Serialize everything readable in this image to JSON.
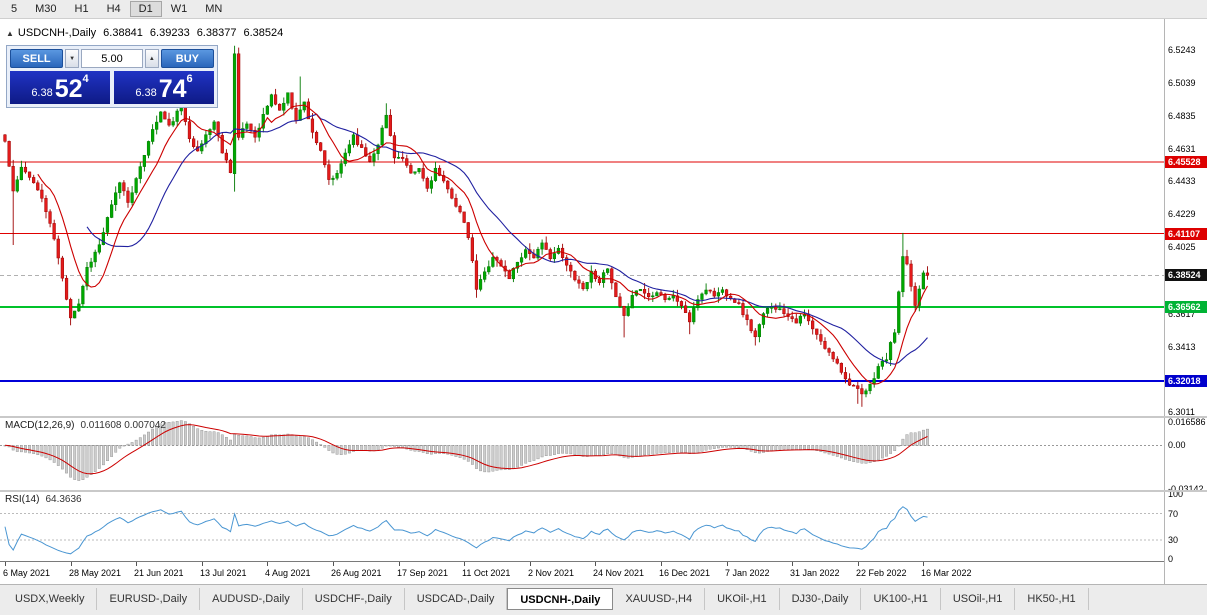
{
  "icons": {
    "collapse": "▲",
    "spin_down": "▼",
    "spin_up": "▲"
  },
  "toolbar": {
    "timeframes": [
      {
        "label": "5",
        "active": false
      },
      {
        "label": "M30",
        "active": false
      },
      {
        "label": "H1",
        "active": false
      },
      {
        "label": "H4",
        "active": false
      },
      {
        "label": "D1",
        "active": true
      },
      {
        "label": "W1",
        "active": false
      },
      {
        "label": "MN",
        "active": false
      }
    ]
  },
  "chart": {
    "symbol_label": "USDCNH-,Daily",
    "ohlc": {
      "open": "6.38841",
      "high": "6.39233",
      "low": "6.38377",
      "close": "6.38524"
    }
  },
  "trade": {
    "sell_label": "SELL",
    "buy_label": "BUY",
    "volume": "5.00",
    "sell_price": {
      "prefix": "6.38",
      "big": "52",
      "sup": "4"
    },
    "buy_price": {
      "prefix": "6.38",
      "big": "74",
      "sup": "6"
    }
  },
  "macd_panel": {
    "label": "MACD(12,26,9)",
    "values": "0.011608 0.007042"
  },
  "rsi_panel": {
    "label": "RSI(14)",
    "value": "64.3636"
  },
  "tabs": [
    {
      "label": "USDX,Weekly",
      "active": false
    },
    {
      "label": "EURUSD-,Daily",
      "active": false
    },
    {
      "label": "AUDUSD-,Daily",
      "active": false
    },
    {
      "label": "USDCHF-,Daily",
      "active": false
    },
    {
      "label": "USDCAD-,Daily",
      "active": false
    },
    {
      "label": "USDCNH-,Daily",
      "active": true
    },
    {
      "label": "XAUUSD-,H4",
      "active": false
    },
    {
      "label": "UKOil-,H1",
      "active": false
    },
    {
      "label": "DJ30-,Daily",
      "active": false
    },
    {
      "label": "UK100-,H1",
      "active": false
    },
    {
      "label": "USOil-,H1",
      "active": false
    },
    {
      "label": "HK50-,H1",
      "active": false
    }
  ],
  "chart_data": {
    "type": "candlestick",
    "symbol": "USDCNH-",
    "period": "Daily",
    "price_max": 6.5435,
    "price_min": 6.2985,
    "candle_count": 226,
    "bid_price": 6.38524,
    "close_anchors": [
      [
        0,
        6.468
      ],
      [
        2,
        6.437
      ],
      [
        4,
        6.451
      ],
      [
        6,
        6.447
      ],
      [
        9,
        6.433
      ],
      [
        12,
        6.408
      ],
      [
        14,
        6.383
      ],
      [
        16,
        6.36
      ],
      [
        18,
        6.368
      ],
      [
        20,
        6.39
      ],
      [
        23,
        6.404
      ],
      [
        26,
        6.428
      ],
      [
        28,
        6.443
      ],
      [
        30,
        6.431
      ],
      [
        33,
        6.451
      ],
      [
        35,
        6.469
      ],
      [
        38,
        6.486
      ],
      [
        40,
        6.477
      ],
      [
        43,
        6.49
      ],
      [
        45,
        6.471
      ],
      [
        47,
        6.461
      ],
      [
        49,
        6.472
      ],
      [
        51,
        6.48
      ],
      [
        53,
        6.462
      ],
      [
        55,
        6.45
      ],
      [
        56,
        6.522
      ],
      [
        57,
        6.47
      ],
      [
        59,
        6.479
      ],
      [
        61,
        6.471
      ],
      [
        63,
        6.484
      ],
      [
        65,
        6.496
      ],
      [
        67,
        6.487
      ],
      [
        69,
        6.497
      ],
      [
        71,
        6.482
      ],
      [
        73,
        6.492
      ],
      [
        75,
        6.474
      ],
      [
        77,
        6.461
      ],
      [
        79,
        6.444
      ],
      [
        81,
        6.447
      ],
      [
        83,
        6.461
      ],
      [
        85,
        6.472
      ],
      [
        87,
        6.463
      ],
      [
        89,
        6.456
      ],
      [
        91,
        6.467
      ],
      [
        93,
        6.484
      ],
      [
        95,
        6.459
      ],
      [
        97,
        6.457
      ],
      [
        99,
        6.447
      ],
      [
        101,
        6.451
      ],
      [
        103,
        6.439
      ],
      [
        105,
        6.451
      ],
      [
        107,
        6.442
      ],
      [
        109,
        6.434
      ],
      [
        111,
        6.424
      ],
      [
        113,
        6.409
      ],
      [
        115,
        6.377
      ],
      [
        117,
        6.387
      ],
      [
        119,
        6.397
      ],
      [
        121,
        6.391
      ],
      [
        123,
        6.384
      ],
      [
        125,
        6.394
      ],
      [
        127,
        6.401
      ],
      [
        129,
        6.397
      ],
      [
        131,
        6.404
      ],
      [
        133,
        6.397
      ],
      [
        135,
        6.401
      ],
      [
        137,
        6.391
      ],
      [
        139,
        6.384
      ],
      [
        141,
        6.377
      ],
      [
        143,
        6.387
      ],
      [
        145,
        6.382
      ],
      [
        147,
        6.389
      ],
      [
        149,
        6.371
      ],
      [
        151,
        6.359
      ],
      [
        153,
        6.374
      ],
      [
        155,
        6.377
      ],
      [
        157,
        6.372
      ],
      [
        159,
        6.376
      ],
      [
        161,
        6.371
      ],
      [
        163,
        6.372
      ],
      [
        165,
        6.367
      ],
      [
        167,
        6.357
      ],
      [
        169,
        6.371
      ],
      [
        171,
        6.377
      ],
      [
        173,
        6.373
      ],
      [
        175,
        6.376
      ],
      [
        177,
        6.372
      ],
      [
        179,
        6.367
      ],
      [
        181,
        6.357
      ],
      [
        183,
        6.347
      ],
      [
        185,
        6.361
      ],
      [
        187,
        6.367
      ],
      [
        189,
        6.364
      ],
      [
        191,
        6.361
      ],
      [
        193,
        6.357
      ],
      [
        195,
        6.361
      ],
      [
        197,
        6.352
      ],
      [
        199,
        6.344
      ],
      [
        201,
        6.337
      ],
      [
        203,
        6.332
      ],
      [
        205,
        6.321
      ],
      [
        207,
        6.317
      ],
      [
        209,
        6.311
      ],
      [
        211,
        6.317
      ],
      [
        213,
        6.329
      ],
      [
        215,
        6.334
      ],
      [
        217,
        6.351
      ],
      [
        218,
        6.374
      ],
      [
        219,
        6.397
      ],
      [
        220,
        6.391
      ],
      [
        221,
        6.377
      ],
      [
        222,
        6.367
      ],
      [
        223,
        6.377
      ],
      [
        224,
        6.387
      ],
      [
        225,
        6.38524
      ]
    ],
    "wick_overrides": [
      [
        2,
        null,
        6.404
      ],
      [
        16,
        null,
        6.3545
      ],
      [
        43,
        6.4955,
        null
      ],
      [
        56,
        6.527,
        6.437
      ],
      [
        72,
        6.508,
        null
      ],
      [
        93,
        6.4915,
        null
      ],
      [
        115,
        null,
        6.3715
      ],
      [
        151,
        null,
        6.347
      ],
      [
        167,
        null,
        6.349
      ],
      [
        183,
        null,
        6.342
      ],
      [
        208,
        null,
        6.306
      ],
      [
        209,
        null,
        6.3042
      ],
      [
        219,
        6.4115,
        null
      ]
    ],
    "body_overrides": [
      [
        56,
        6.448,
        6.522
      ]
    ],
    "horizontal_lines": [
      {
        "price": 6.45528,
        "color": "#e00000",
        "width": 1
      },
      {
        "price": 6.41107,
        "color": "#e00000",
        "width": 1
      },
      {
        "price": 6.36562,
        "color": "#00c22a",
        "width": 2
      },
      {
        "price": 6.32018,
        "color": "#0000d8",
        "width": 2
      }
    ],
    "ma_fast_period": 9,
    "ma_slow_period": 21,
    "macd": {
      "params": "12,26,9",
      "value": 0.011608,
      "signal": 0.007042,
      "scale_max": 0.0195,
      "scale_min": -0.032,
      "axis_labels": [
        {
          "v": 0.016586,
          "text": "0.016586"
        },
        {
          "v": 0,
          "text": "0.00"
        },
        {
          "v": -0.03142,
          "text": "-0.03142"
        }
      ]
    },
    "rsi": {
      "period": 14,
      "value": 64.3636,
      "levels": [
        70,
        30
      ],
      "axis_labels": [
        {
          "v": 100,
          "text": "100"
        },
        {
          "v": 70,
          "text": "70"
        },
        {
          "v": 30,
          "text": "30"
        },
        {
          "v": 0,
          "text": "0"
        }
      ]
    },
    "price_axis": {
      "plain_labels": [
        {
          "price": 6.5243,
          "text": "6.5243"
        },
        {
          "price": 6.5039,
          "text": "6.5039"
        },
        {
          "price": 6.4835,
          "text": "6.4835"
        },
        {
          "price": 6.4631,
          "text": "6.4631"
        },
        {
          "price": 6.4433,
          "text": "6.4433"
        },
        {
          "price": 6.4229,
          "text": "6.4229"
        },
        {
          "price": 6.4025,
          "text": "6.4025"
        },
        {
          "price": 6.3617,
          "text": "6.3617"
        },
        {
          "price": 6.3413,
          "text": "6.3413"
        },
        {
          "price": 6.3011,
          "text": "6.3011"
        }
      ],
      "tags": [
        {
          "price": 6.45528,
          "text": "6.45528",
          "bg": "#dd0000"
        },
        {
          "price": 6.41107,
          "text": "6.41107",
          "bg": "#dd0000"
        },
        {
          "price": 6.38524,
          "text": "6.38524",
          "bg": "#111111"
        },
        {
          "price": 6.36562,
          "text": "6.36562",
          "bg": "#00b335"
        },
        {
          "price": 6.32018,
          "text": "6.32018",
          "bg": "#0000cc"
        }
      ]
    },
    "date_labels": [
      [
        0,
        "6 May 2021"
      ],
      [
        16,
        "28 May 2021"
      ],
      [
        32,
        "21 Jun 2021"
      ],
      [
        48,
        "13 Jul 2021"
      ],
      [
        64,
        "4 Aug 2021"
      ],
      [
        80,
        "26 Aug 2021"
      ],
      [
        96,
        "17 Sep 2021"
      ],
      [
        112,
        "11 Oct 2021"
      ],
      [
        128,
        "2 Nov 2021"
      ],
      [
        144,
        "24 Nov 2021"
      ],
      [
        160,
        "16 Dec 2021"
      ],
      [
        176,
        "7 Jan 2022"
      ],
      [
        192,
        "31 Jan 2022"
      ],
      [
        208,
        "22 Feb 2022"
      ],
      [
        224,
        "16 Mar 2022"
      ]
    ],
    "colors": {
      "up_fill": "#00a800",
      "up_stroke": "#007800",
      "down_fill": "#e31b1b",
      "down_stroke": "#9d0000",
      "ma_fast": "#cc0000",
      "ma_slow": "#2020a0",
      "macd_bar_fill": "#cdcdcd",
      "macd_bar_stroke": "#8c8c8c",
      "macd_signal": "#cc0000",
      "rsi_line": "#4a96d2",
      "bid_line": "#b0b0b0"
    }
  }
}
